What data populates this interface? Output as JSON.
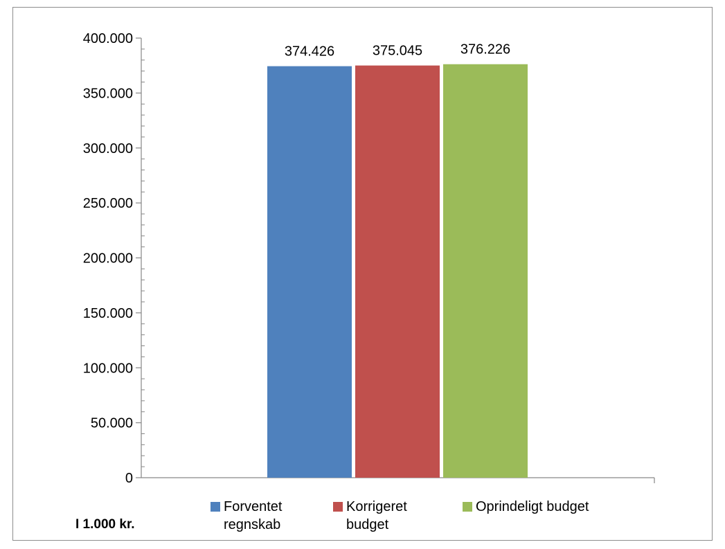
{
  "chart_data": {
    "type": "bar",
    "title": "",
    "xlabel": "",
    "ylabel": "",
    "ylim": [
      0,
      400000
    ],
    "yticks": [
      0,
      50000,
      100000,
      150000,
      200000,
      250000,
      300000,
      350000,
      400000
    ],
    "ytick_labels": [
      "0",
      "50.000",
      "100.000",
      "150.000",
      "200.000",
      "250.000",
      "300.000",
      "350.000",
      "400.000"
    ],
    "grid": false,
    "legend_position": "bottom",
    "series": [
      {
        "name": "Forventet regnskab",
        "value": 374426,
        "label": "374.426",
        "color": "#4f81bd"
      },
      {
        "name": "Korrigeret budget",
        "value": 375045,
        "label": "375.045",
        "color": "#c0504d"
      },
      {
        "name": "Oprindeligt budget",
        "value": 376226,
        "label": "376.226",
        "color": "#9bbb59"
      }
    ],
    "legend": [
      {
        "line1": "Forventet",
        "line2": "regnskab"
      },
      {
        "line1": "Korrigeret",
        "line2": "budget"
      },
      {
        "line1": "Oprindeligt budget",
        "line2": ""
      }
    ],
    "note": "I 1.000 kr."
  }
}
